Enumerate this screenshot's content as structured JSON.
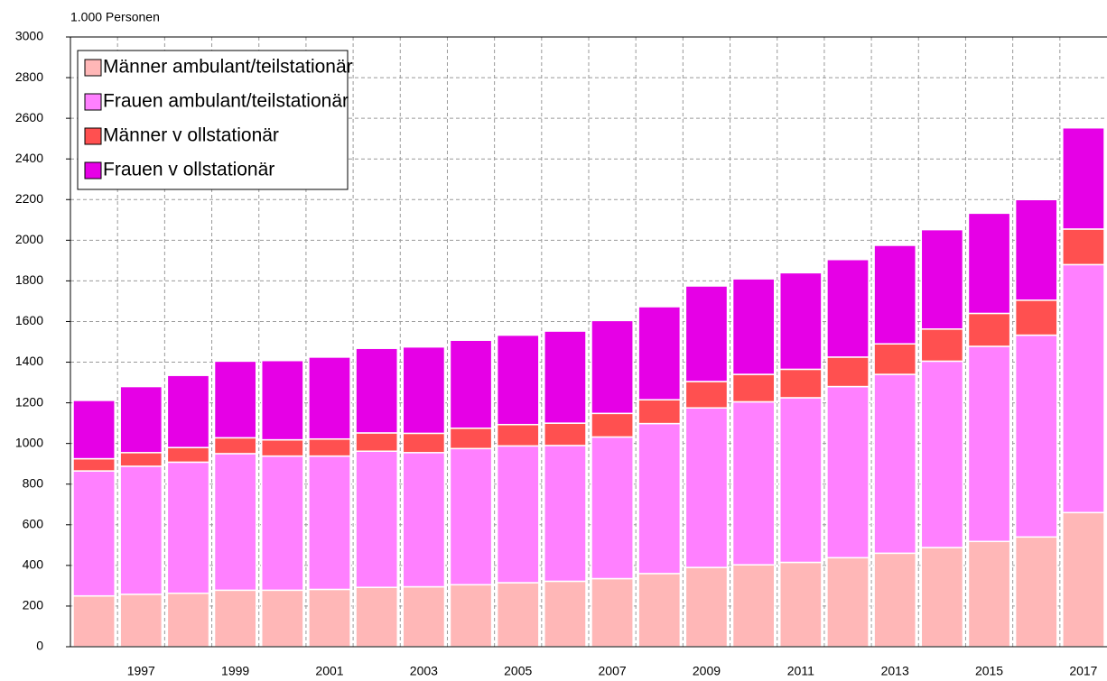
{
  "chart_data": {
    "type": "stacked_bar",
    "y_label": "1.000 Personen",
    "categories": [
      null,
      "1997",
      null,
      "1999",
      null,
      "2001",
      null,
      "2003",
      null,
      "2005",
      null,
      "2007",
      null,
      "2009",
      null,
      "2011",
      null,
      "2013",
      null,
      "2015",
      null,
      "2017"
    ],
    "series": [
      {
        "name": "Männer ambulant/teilstationär",
        "color": "#ffb7b7",
        "values": [
          250,
          258,
          263,
          278,
          278,
          282,
          292,
          295,
          305,
          315,
          322,
          335,
          360,
          390,
          403,
          415,
          438,
          460,
          488,
          518,
          540,
          660
        ]
      },
      {
        "name": "Frauen ambulant/teilstationär",
        "color": "#ff80ff",
        "values": [
          615,
          630,
          645,
          672,
          660,
          656,
          670,
          660,
          670,
          673,
          668,
          697,
          738,
          785,
          802,
          810,
          842,
          880,
          917,
          960,
          993,
          1220
        ]
      },
      {
        "name": "Männer v ollstationär",
        "color": "#ff5050",
        "values": [
          60,
          67,
          72,
          78,
          80,
          84,
          90,
          95,
          100,
          105,
          110,
          116,
          117,
          130,
          135,
          140,
          145,
          150,
          158,
          162,
          172,
          175
        ]
      },
      {
        "name": "Frauen v ollstationär",
        "color": "#e600e6",
        "values": [
          287,
          325,
          355,
          377,
          390,
          403,
          416,
          425,
          433,
          440,
          453,
          457,
          458,
          470,
          470,
          475,
          480,
          485,
          489,
          493,
          495,
          498
        ]
      }
    ],
    "ylim": [
      0,
      3000
    ],
    "yticks": [
      0,
      200,
      400,
      600,
      800,
      1000,
      1200,
      1400,
      1600,
      1800,
      2000,
      2200,
      2400,
      2600,
      2800,
      3000
    ],
    "grid": true,
    "legend": "top-left"
  }
}
